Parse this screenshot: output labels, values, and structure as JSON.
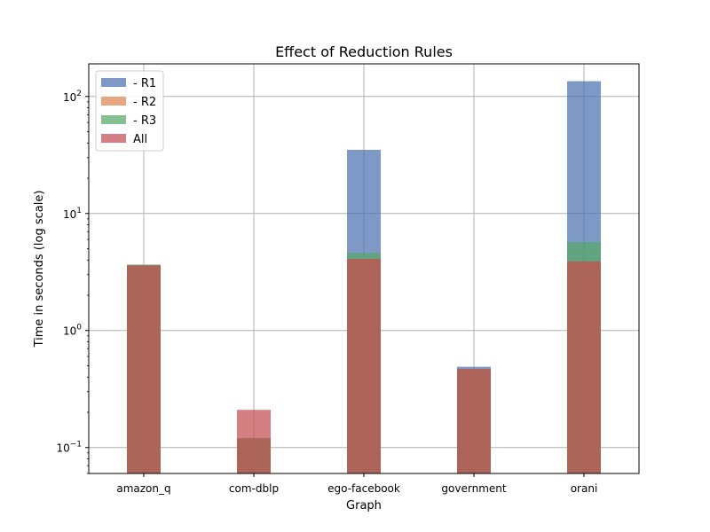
{
  "chart_data": {
    "type": "bar",
    "title": "Effect of Reduction Rules",
    "xlabel": "Graph",
    "ylabel": "Time in seconds (log scale)",
    "yscale": "log",
    "ylim": [
      0.06,
      190
    ],
    "grid": true,
    "legend": "top-left",
    "overlay": true,
    "categories": [
      "amazon_q",
      "com-dblp",
      "ego-facebook",
      "government",
      "orani"
    ],
    "y_ticks": [
      {
        "value": 0.1,
        "base": "10",
        "exp": "−1"
      },
      {
        "value": 1,
        "base": "10",
        "exp": "0"
      },
      {
        "value": 10,
        "base": "10",
        "exp": "1"
      },
      {
        "value": 100,
        "base": "10",
        "exp": "2"
      }
    ],
    "series": [
      {
        "name": "- R1",
        "color": "#4c72b0",
        "values": [
          3.65,
          0.12,
          35,
          0.49,
          135
        ]
      },
      {
        "name": "- R2",
        "color": "#dd8452",
        "values": [
          3.65,
          0.12,
          4.1,
          0.47,
          3.9
        ]
      },
      {
        "name": "- R3",
        "color": "#55a868",
        "values": [
          3.65,
          0.12,
          4.6,
          0.47,
          5.7
        ]
      },
      {
        "name": "All",
        "color": "#c44e52",
        "values": [
          3.6,
          0.21,
          4.1,
          0.47,
          3.9
        ]
      }
    ]
  }
}
